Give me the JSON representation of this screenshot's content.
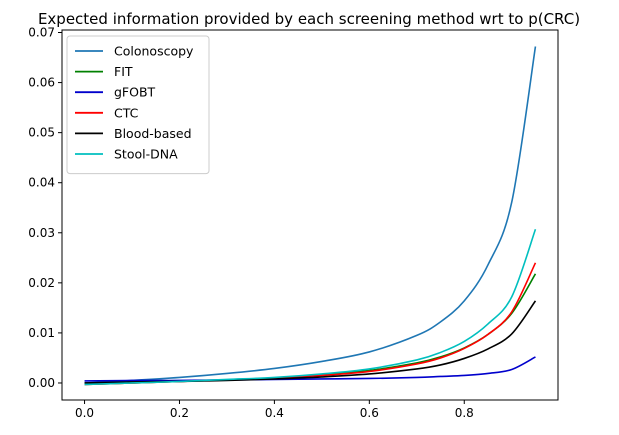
{
  "chart_data": {
    "type": "line",
    "title": "Expected information provided by each screening method wrt to p(CRC)",
    "xlabel": "",
    "ylabel": "",
    "xlim": [
      -0.0475,
      0.9975
    ],
    "ylim": [
      -0.0034,
      0.0705
    ],
    "xticks": [
      0.0,
      0.2,
      0.4,
      0.6,
      0.8
    ],
    "xtick_labels": [
      "0.0",
      "0.2",
      "0.4",
      "0.6",
      "0.8"
    ],
    "yticks": [
      0.0,
      0.01,
      0.02,
      0.03,
      0.04,
      0.05,
      0.06,
      0.07
    ],
    "ytick_labels": [
      "0.00",
      "0.01",
      "0.02",
      "0.03",
      "0.04",
      "0.05",
      "0.06",
      "0.07"
    ],
    "grid": false,
    "legend_position": "top-left",
    "x": [
      0.0,
      0.1,
      0.2,
      0.3,
      0.4,
      0.5,
      0.6,
      0.7,
      0.75,
      0.8,
      0.85,
      0.9,
      0.95
    ],
    "series": [
      {
        "name": "Colonoscopy",
        "color": "#1f77b4",
        "values": [
          0.0,
          0.0005,
          0.0011,
          0.0019,
          0.0029,
          0.0043,
          0.0062,
          0.0095,
          0.0122,
          0.0164,
          0.0236,
          0.0361,
          0.0672
        ]
      },
      {
        "name": "FIT",
        "color": "#008000",
        "values": [
          -0.0003,
          0.0,
          0.0003,
          0.0006,
          0.001,
          0.0016,
          0.0025,
          0.004,
          0.0052,
          0.007,
          0.0097,
          0.0139,
          0.0218
        ]
      },
      {
        "name": "gFOBT",
        "color": "#0000cc",
        "values": [
          0.0004,
          0.0005,
          0.0005,
          0.0006,
          0.0007,
          0.0008,
          0.0009,
          0.0011,
          0.0013,
          0.0015,
          0.0019,
          0.0027,
          0.0052
        ]
      },
      {
        "name": "CTC",
        "color": "#ff0000",
        "values": [
          -0.0003,
          0.0,
          0.0003,
          0.0006,
          0.001,
          0.0015,
          0.0023,
          0.0038,
          0.005,
          0.0069,
          0.0097,
          0.0142,
          0.024
        ]
      },
      {
        "name": "Blood-based",
        "color": "#000000",
        "values": [
          0.0,
          0.0002,
          0.0003,
          0.0005,
          0.0008,
          0.0012,
          0.0018,
          0.0028,
          0.0036,
          0.0049,
          0.0068,
          0.0098,
          0.0164
        ]
      },
      {
        "name": "Stool-DNA",
        "color": "#00bfbf",
        "values": [
          -0.0003,
          0.0,
          0.0003,
          0.0007,
          0.0011,
          0.0018,
          0.0028,
          0.0046,
          0.0061,
          0.0083,
          0.0118,
          0.0172,
          0.0307
        ]
      }
    ]
  }
}
